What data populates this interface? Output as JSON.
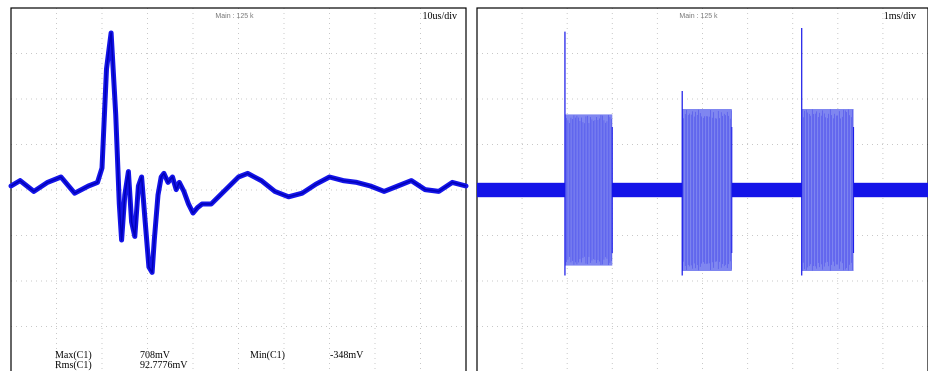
{
  "colors": {
    "trace": "#1414e8",
    "grid": "#c8c8c8",
    "frame": "#000000",
    "background": "#ffffff"
  },
  "left_panel": {
    "memory_label": "Main : 125 k",
    "timebase": "10us/div",
    "measurements": [
      {
        "name": "Max(C1)",
        "value": "708mV"
      },
      {
        "name": "Min(C1)",
        "value": "-348mV"
      },
      {
        "name": "Rms(C1)",
        "value": "92.7776mV"
      }
    ]
  },
  "right_panel": {
    "memory_label": "Main : 125 k",
    "timebase": "1ms/div"
  },
  "chart_data": [
    {
      "type": "line",
      "title": "",
      "x_unit": "us",
      "timebase": "10us/div",
      "xlim": [
        0,
        100
      ],
      "ylim": [
        -1,
        1
      ],
      "series": [
        {
          "points": [
            [
              0,
              0
            ],
            [
              2,
              0.03
            ],
            [
              5,
              -0.03
            ],
            [
              8,
              0.02
            ],
            [
              11,
              0.05
            ],
            [
              14,
              -0.04
            ],
            [
              17,
              0
            ],
            [
              19,
              0.02
            ],
            [
              20,
              0.1
            ],
            [
              21,
              0.65
            ],
            [
              22,
              0.85
            ],
            [
              23,
              0.4
            ],
            [
              23.8,
              -0.1
            ],
            [
              24.3,
              -0.3
            ],
            [
              25,
              -0.05
            ],
            [
              25.8,
              0.08
            ],
            [
              26.5,
              -0.2
            ],
            [
              27.2,
              -0.28
            ],
            [
              28,
              0
            ],
            [
              28.7,
              0.05
            ],
            [
              29.5,
              -0.2
            ],
            [
              30.3,
              -0.45
            ],
            [
              31,
              -0.48
            ],
            [
              31.5,
              -0.3
            ],
            [
              32.3,
              -0.05
            ],
            [
              33,
              0.05
            ],
            [
              33.6,
              0.07
            ],
            [
              34.5,
              0.02
            ],
            [
              35.5,
              0.05
            ],
            [
              36.3,
              -0.02
            ],
            [
              37,
              0.02
            ],
            [
              38,
              -0.03
            ],
            [
              39,
              -0.1
            ],
            [
              40,
              -0.15
            ],
            [
              41,
              -0.12
            ],
            [
              42,
              -0.1
            ],
            [
              44,
              -0.1
            ],
            [
              46,
              -0.05
            ],
            [
              48,
              0
            ],
            [
              50,
              0.05
            ],
            [
              52,
              0.07
            ],
            [
              55,
              0.03
            ],
            [
              58,
              -0.03
            ],
            [
              61,
              -0.06
            ],
            [
              64,
              -0.04
            ],
            [
              67,
              0.01
            ],
            [
              70,
              0.05
            ],
            [
              73,
              0.03
            ],
            [
              76,
              0.02
            ],
            [
              79,
              0
            ],
            [
              82,
              -0.03
            ],
            [
              85,
              0
            ],
            [
              88,
              0.03
            ],
            [
              91,
              -0.02
            ],
            [
              94,
              -0.03
            ],
            [
              97,
              0.02
            ],
            [
              100,
              0
            ]
          ]
        }
      ],
      "measurements": {
        "max": "708mV",
        "min": "-348mV",
        "rms": "92.7776mV"
      }
    },
    {
      "type": "area",
      "title": "",
      "x_unit": "ms",
      "timebase": "1ms/div",
      "xlim": [
        0,
        10
      ],
      "ylim": [
        -1,
        1
      ],
      "baseline_envelope": 0.04,
      "bursts": [
        {
          "x_start": 1.95,
          "x_end": 3.0,
          "envelope": 0.42,
          "spike_start": 0.88,
          "spike_end": 0.5
        },
        {
          "x_start": 4.55,
          "x_end": 5.65,
          "envelope": 0.45,
          "spike_start": 0.55,
          "spike_end": 0.5
        },
        {
          "x_start": 7.2,
          "x_end": 8.35,
          "envelope": 0.45,
          "spike_start": 0.9,
          "spike_end": 0.5
        }
      ]
    }
  ]
}
